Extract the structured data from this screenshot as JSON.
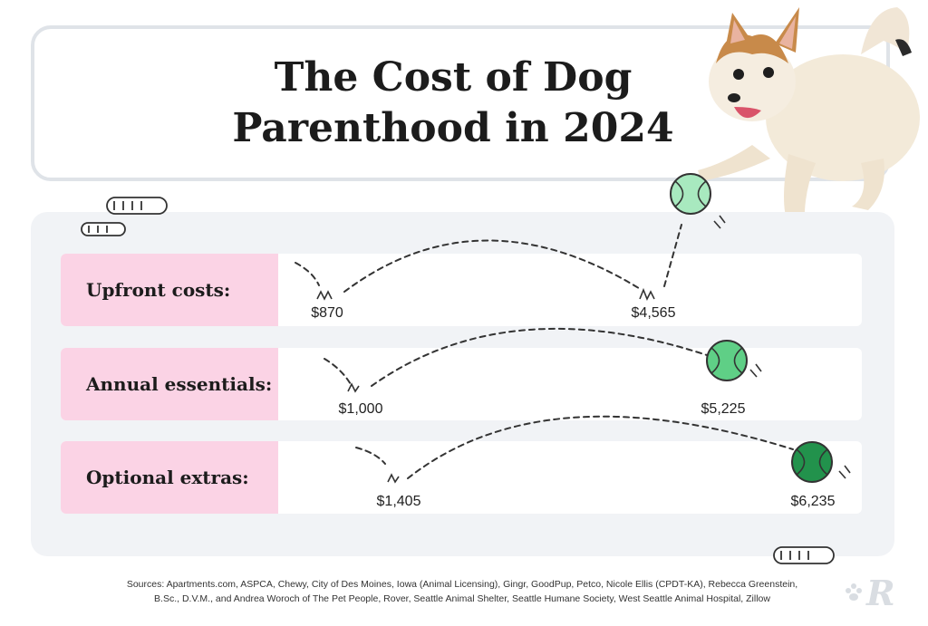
{
  "header": {
    "title_line1": "The Cost of Dog",
    "title_line2": "Parenthood in 2024"
  },
  "chart_data": {
    "type": "table",
    "rows": [
      {
        "label": "Upfront costs:",
        "low": "$870",
        "high": "$4,565"
      },
      {
        "label": "Annual essentials:",
        "low": "$1,000",
        "high": "$5,225"
      },
      {
        "label": "Optional extras:",
        "low": "$1,405",
        "high": "$6,235"
      }
    ]
  },
  "footer": {
    "sources_line1": "Sources: Apartments.com, ASPCA, Chewy, City of Des Moines, Iowa (Animal Licensing), Gingr, GoodPup, Petco, Nicole Ellis (CPDT-KA), Rebecca Greenstein,",
    "sources_line2": "B.Sc., D.V.M., and Andrea Woroch of The Pet People, Rover, Seattle Animal Shelter, Seattle Humane Society, West Seattle Animal Hospital, Zillow",
    "logo_letter": "R"
  },
  "colors": {
    "pink": "#fbd3e5",
    "ball_light": "#8fe0a8",
    "ball_mid": "#3fbf6b",
    "ball_dark": "#1e8a45",
    "panel": "#f1f3f6"
  }
}
